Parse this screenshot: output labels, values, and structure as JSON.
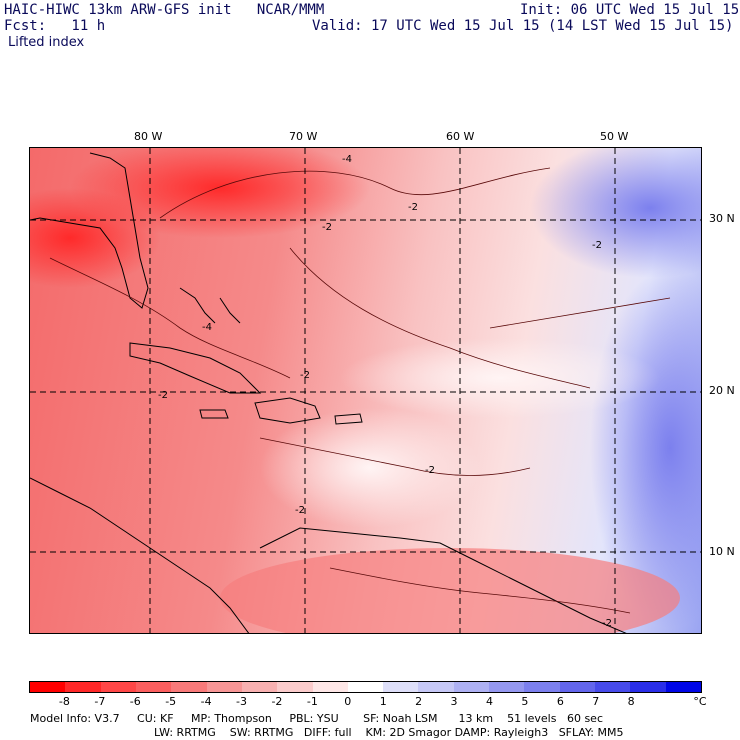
{
  "header": {
    "model_title": "HAIC-HIWC 13km ARW-GFS init   NCAR/MMM",
    "init": "Init: 06 UTC Wed 15 Jul 15",
    "fcst": "Fcst:   11 h",
    "valid": "Valid: 17 UTC Wed 15 Jul 15 (14 LST Wed 15 Jul 15)",
    "field": "Lifted index"
  },
  "axes": {
    "longitudes": [
      "80 W",
      "70 W",
      "60 W",
      "50 W"
    ],
    "latitudes": [
      "30 N",
      "20 N",
      "10 N"
    ]
  },
  "contour_labels": [
    "-4",
    "-2",
    "-2",
    "-2",
    "-2",
    "-4",
    "-2",
    "-2",
    "-2",
    "-2"
  ],
  "colorbar": {
    "ticks": [
      "-8",
      "-7",
      "-6",
      "-5",
      "-4",
      "-3",
      "-2",
      "-1",
      "0",
      "1",
      "2",
      "3",
      "4",
      "5",
      "6",
      "7",
      "8"
    ],
    "unit": "°C",
    "colors": [
      "#ff0000",
      "#ff2828",
      "#ff4747",
      "#fb5f5f",
      "#f87a7a",
      "#f79696",
      "#f8b1b1",
      "#fbcccc",
      "#fee7e7",
      "#ffffff",
      "#dedff9",
      "#c6c8f6",
      "#aeb1f3",
      "#9598f0",
      "#7c80ee",
      "#6366ec",
      "#474bea",
      "#2a2ee8",
      "#0006e6"
    ]
  },
  "footer": {
    "line1": "Model Info: V3.7     CU: KF     MP: Thompson     PBL: YSU       SF: Noah LSM      13 km    51 levels   60 sec",
    "line2": "LW: RRTMG    SW: RRTMG   DIFF: full    KM: 2D Smagor DAMP: Rayleigh3   SFLAY: MM5"
  }
}
